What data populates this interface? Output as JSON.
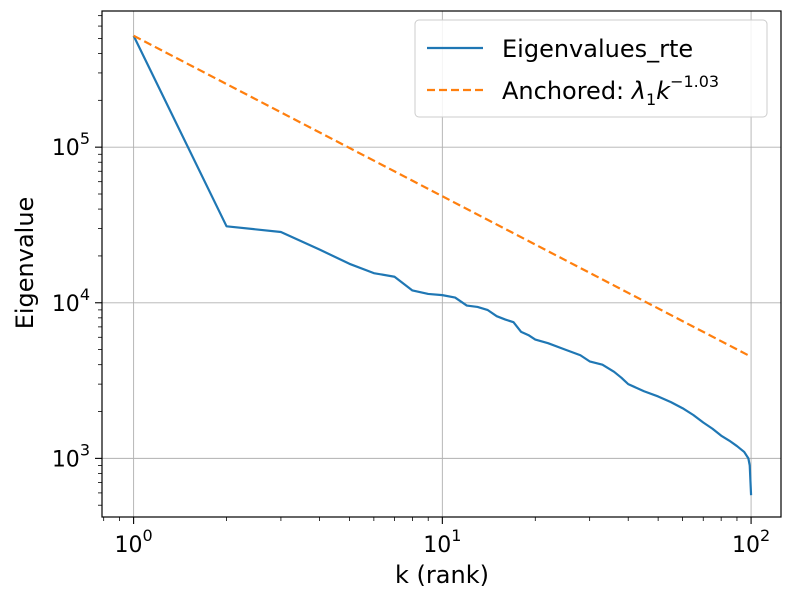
{
  "chart_data": {
    "type": "line",
    "x_scale": "log",
    "y_scale": "log",
    "xlabel": "k (rank)",
    "ylabel": "Eigenvalue",
    "xlim": [
      0.79,
      125
    ],
    "ylim": [
      420,
      750000
    ],
    "grid": true,
    "legend_position": "top-right",
    "x_ticks": [
      {
        "value": 1,
        "base": "10",
        "exp": "0"
      },
      {
        "value": 10,
        "base": "10",
        "exp": "1"
      },
      {
        "value": 100,
        "base": "10",
        "exp": "2"
      }
    ],
    "y_ticks": [
      {
        "value": 1000,
        "base": "10",
        "exp": "3"
      },
      {
        "value": 10000,
        "base": "10",
        "exp": "4"
      },
      {
        "value": 100000,
        "base": "10",
        "exp": "5"
      }
    ],
    "series": [
      {
        "name": "Eigenvalues_rte",
        "color": "#1f77b4",
        "style": "solid",
        "x": [
          1,
          2,
          3,
          4,
          5,
          6,
          7,
          8,
          9,
          10,
          11,
          12,
          13,
          14,
          15,
          16,
          17,
          18,
          19,
          20,
          22,
          25,
          28,
          30,
          33,
          36,
          38,
          40,
          45,
          50,
          55,
          60,
          65,
          70,
          75,
          80,
          85,
          90,
          95,
          98,
          99,
          100
        ],
        "y": [
          520000,
          31000,
          28500,
          22000,
          17800,
          15500,
          14700,
          12000,
          11400,
          11200,
          10800,
          9600,
          9400,
          9000,
          8200,
          7800,
          7500,
          6500,
          6200,
          5800,
          5500,
          5000,
          4600,
          4200,
          4000,
          3600,
          3300,
          3000,
          2700,
          2500,
          2300,
          2100,
          1900,
          1700,
          1550,
          1400,
          1300,
          1200,
          1100,
          1000,
          900,
          580
        ]
      },
      {
        "name": "Anchored",
        "legend_label": "Anchored: ",
        "legend_formula": {
          "lambda": "λ",
          "sub": "1",
          "k": "k",
          "exp": "−1.03"
        },
        "color": "#ff7f0e",
        "style": "dashed",
        "lambda1": 520000,
        "exponent": -1.03,
        "x": [
          1,
          100
        ],
        "y": [
          520000,
          4500
        ]
      }
    ]
  }
}
